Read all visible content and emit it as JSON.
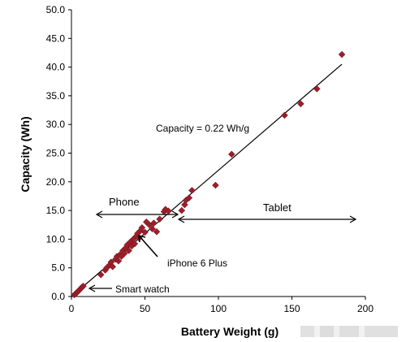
{
  "chart_data": {
    "type": "scatter",
    "title": "",
    "xlabel": "Battery Weight (g)",
    "ylabel": "Capacity (Wh)",
    "xlim": [
      0,
      200
    ],
    "ylim": [
      0,
      50
    ],
    "x_ticks": [
      "0",
      "50",
      "100",
      "150",
      "200"
    ],
    "y_ticks": [
      "0.0",
      "5.0",
      "10.0",
      "15.0",
      "20.0",
      "25.0",
      "30.0",
      "35.0",
      "40.0",
      "45.0",
      "50.0"
    ],
    "grid": false,
    "marker": "diamond",
    "marker_color": "#9b1f2a",
    "series": [
      {
        "points": [
          [
            2,
            0.3
          ],
          [
            3,
            0.5
          ],
          [
            4,
            0.8
          ],
          [
            5,
            1.0
          ],
          [
            6,
            1.3
          ],
          [
            7,
            1.6
          ],
          [
            8,
            1.8
          ],
          [
            20,
            3.8
          ],
          [
            23,
            4.6
          ],
          [
            24,
            5.0
          ],
          [
            26,
            5.5
          ],
          [
            27,
            6.0
          ],
          [
            28,
            5.2
          ],
          [
            30,
            6.5
          ],
          [
            31,
            7.0
          ],
          [
            32,
            6.2
          ],
          [
            33,
            7.3
          ],
          [
            34,
            7.0
          ],
          [
            35,
            8.0
          ],
          [
            36,
            7.5
          ],
          [
            37,
            8.5
          ],
          [
            38,
            9.0
          ],
          [
            39,
            8.0
          ],
          [
            40,
            9.5
          ],
          [
            41,
            8.8
          ],
          [
            42,
            10.0
          ],
          [
            43,
            9.2
          ],
          [
            44,
            10.5
          ],
          [
            45,
            11.0
          ],
          [
            46,
            10.2
          ],
          [
            47,
            11.5
          ],
          [
            48,
            12.0
          ],
          [
            50,
            11.2
          ],
          [
            51,
            13.0
          ],
          [
            53,
            12.5
          ],
          [
            55,
            11.8
          ],
          [
            56,
            12.8
          ],
          [
            58,
            11.3
          ],
          [
            60,
            13.5
          ],
          [
            63,
            14.8
          ],
          [
            64,
            15.2
          ],
          [
            66,
            14.9
          ],
          [
            75,
            15.0
          ],
          [
            77,
            16.0
          ],
          [
            78,
            16.8
          ],
          [
            80,
            17.2
          ],
          [
            82,
            18.5
          ],
          [
            98,
            19.4
          ],
          [
            109,
            24.8
          ],
          [
            145,
            31.6
          ],
          [
            156,
            33.6
          ],
          [
            167,
            36.2
          ],
          [
            184,
            42.2
          ]
        ]
      }
    ],
    "trendline": {
      "x": [
        0,
        184
      ],
      "y": [
        0,
        40.5
      ]
    },
    "annotations": {
      "equation": "Capacity = 0.22 Wh/g",
      "phone": "Phone",
      "tablet": "Tablet",
      "iphone": "iPhone 6 Plus",
      "smartwatch": "Smart watch"
    }
  }
}
